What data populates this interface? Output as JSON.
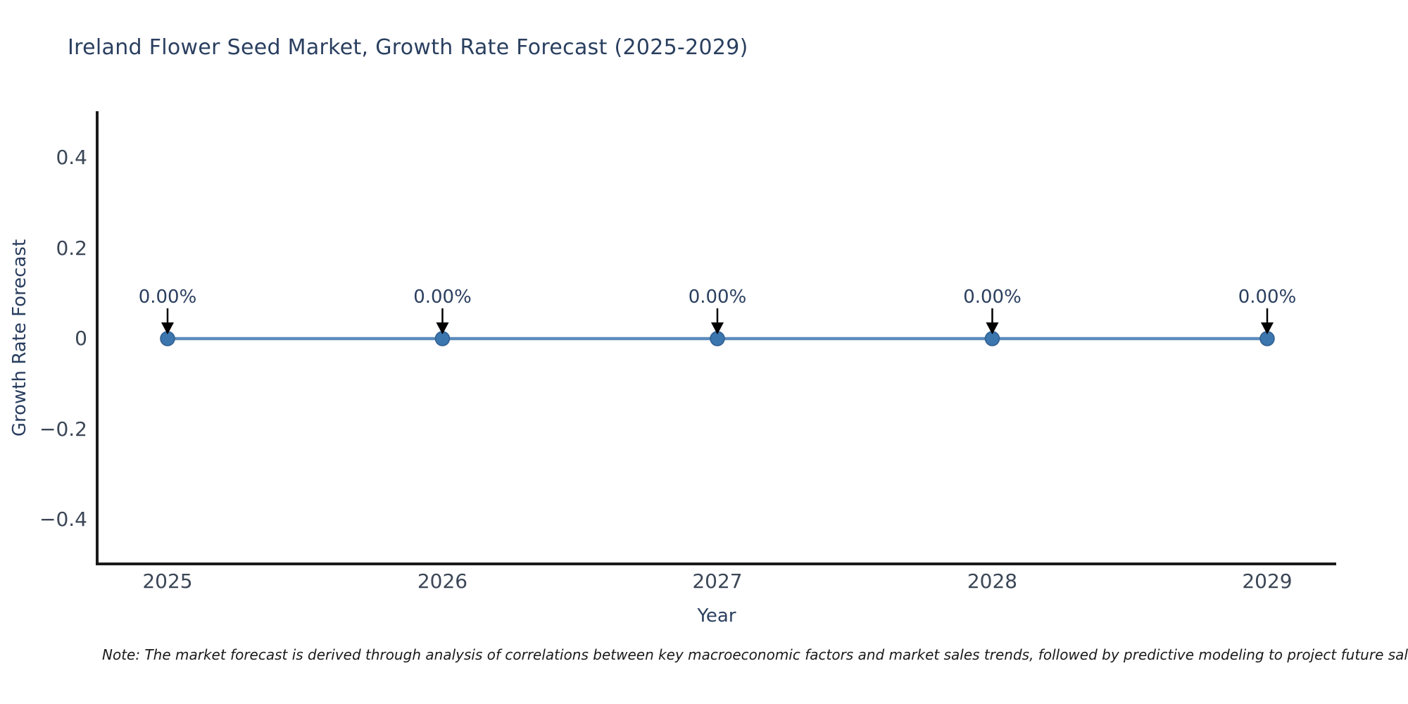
{
  "title": {
    "text": "Ireland Flower Seed Market, Growth Rate Forecast (2025-2029)",
    "color": "#2a3f5f"
  },
  "chart_data": {
    "type": "line",
    "title": "Ireland Flower Seed Market, Growth Rate Forecast (2025-2029)",
    "x": [
      "2025",
      "2026",
      "2027",
      "2028",
      "2029"
    ],
    "series": [
      {
        "name": "Growth Rate Forecast",
        "values": [
          0,
          0,
          0,
          0,
          0
        ]
      }
    ],
    "point_labels": [
      "0.00%",
      "0.00%",
      "0.00%",
      "0.00%",
      "0.00%"
    ],
    "xlabel": "Year",
    "ylabel": "Growth Rate Forecast",
    "ylim": [
      -0.5,
      0.5
    ],
    "ytick_values": [
      0.4,
      0.2,
      0,
      -0.2,
      -0.4
    ],
    "ytick_labels": [
      "0.4",
      "0.2",
      "0",
      "−0.2",
      "−0.4"
    ],
    "grid": false,
    "legend": "none",
    "styles": {
      "line_color": "#5b8cbc",
      "marker_color": "#3c76ae",
      "marker_edge_color": "#2f5e8f",
      "arrow_color": "#000000",
      "axis_color": "#1a1a1a",
      "tick_color": "#3b4656",
      "label_color": "#2a3f5f"
    }
  },
  "footnote": {
    "text": "Note: The market forecast is derived through analysis of correlations between key macroeconomic factors and market sales trends, followed by predictive modeling to project future sal",
    "color": "#1a1a1a"
  }
}
